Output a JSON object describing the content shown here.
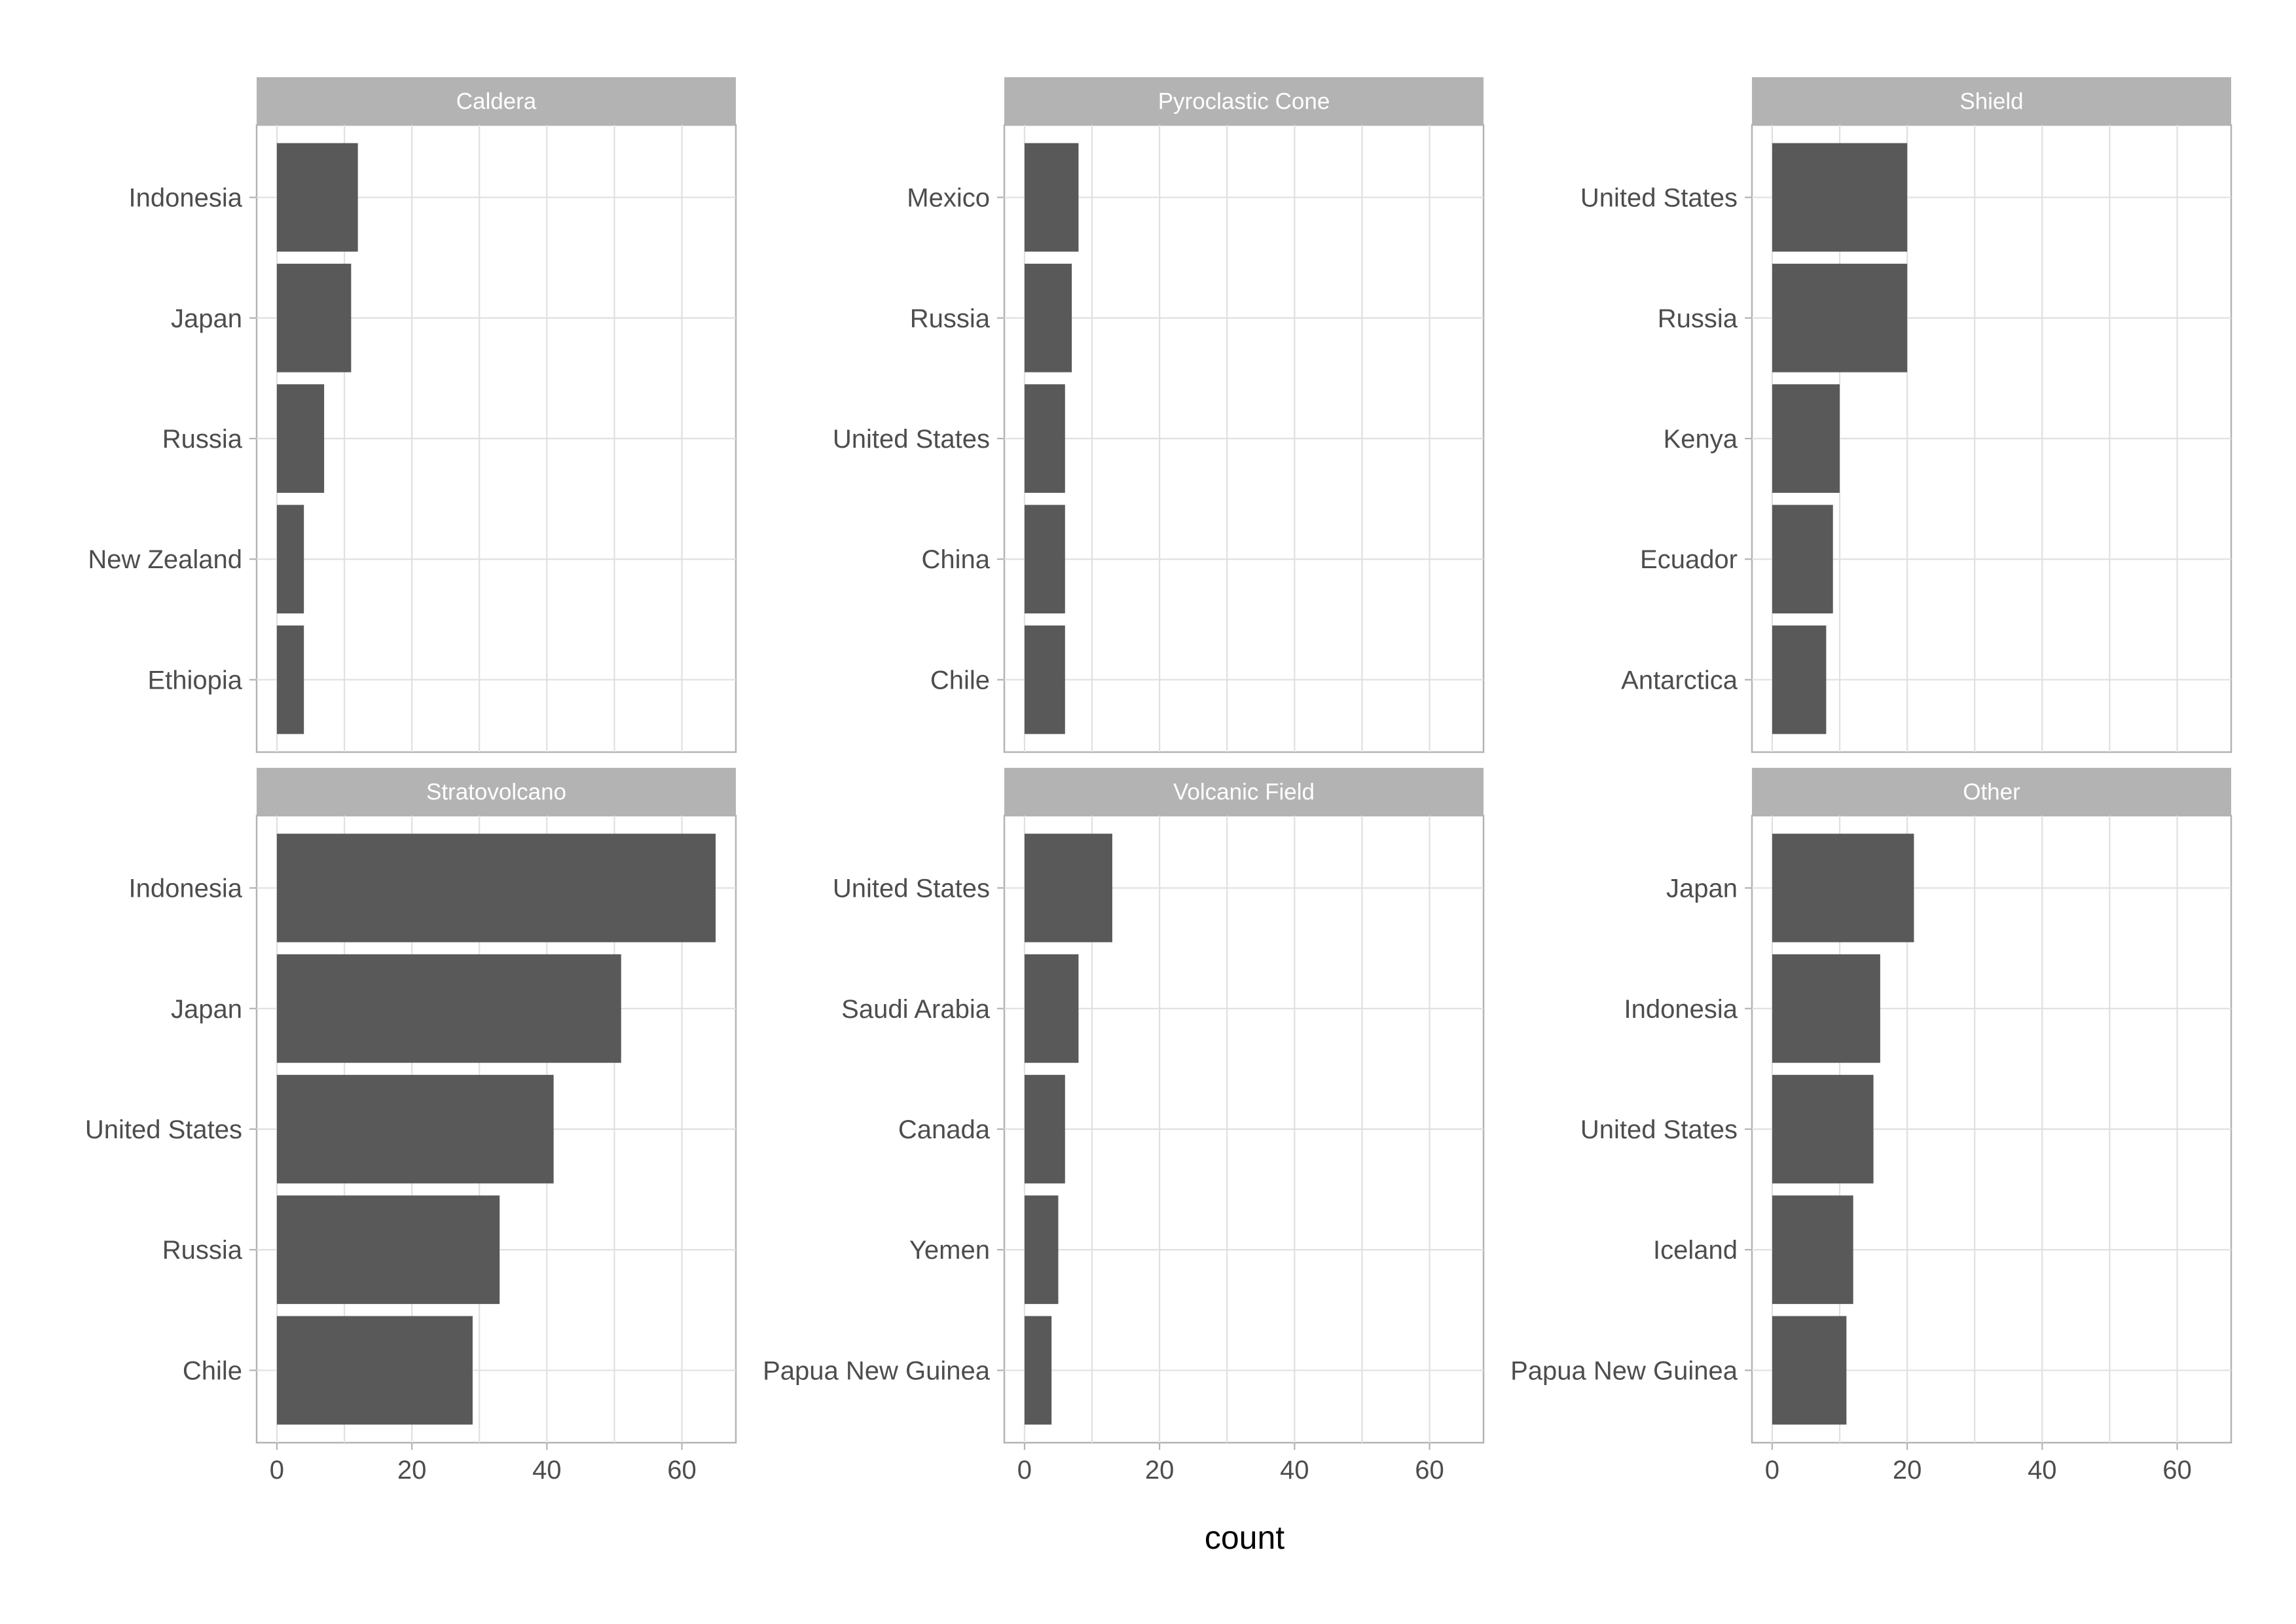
{
  "chart_data": {
    "type": "bar",
    "orientation": "horizontal",
    "facet_layout": "2 rows x 3 columns",
    "xlabel": "count",
    "ylabel": "",
    "xlim": [
      -3,
      68
    ],
    "x_ticks": [
      0,
      20,
      40,
      60
    ],
    "x_tick_labels": [
      "0",
      "20",
      "40",
      "60"
    ],
    "grid": true,
    "panels": [
      {
        "title": "Caldera",
        "categories": [
          "Indonesia",
          "Japan",
          "Russia",
          "New Zealand",
          "Ethiopia"
        ],
        "values": [
          12,
          11,
          7,
          4,
          4
        ]
      },
      {
        "title": "Pyroclastic Cone",
        "categories": [
          "Mexico",
          "Russia",
          "United States",
          "China",
          "Chile"
        ],
        "values": [
          8,
          7,
          6,
          6,
          6
        ]
      },
      {
        "title": "Shield",
        "categories": [
          "United States",
          "Russia",
          "Kenya",
          "Ecuador",
          "Antarctica"
        ],
        "values": [
          20,
          20,
          10,
          9,
          8
        ]
      },
      {
        "title": "Stratovolcano",
        "categories": [
          "Indonesia",
          "Japan",
          "United States",
          "Russia",
          "Chile"
        ],
        "values": [
          65,
          51,
          41,
          33,
          29
        ]
      },
      {
        "title": "Volcanic Field",
        "categories": [
          "United States",
          "Saudi Arabia",
          "Canada",
          "Yemen",
          "Papua New Guinea"
        ],
        "values": [
          13,
          8,
          6,
          5,
          4
        ]
      },
      {
        "title": "Other",
        "categories": [
          "Japan",
          "Indonesia",
          "United States",
          "Iceland",
          "Papua New Guinea"
        ],
        "values": [
          21,
          16,
          15,
          12,
          11
        ]
      }
    ]
  }
}
